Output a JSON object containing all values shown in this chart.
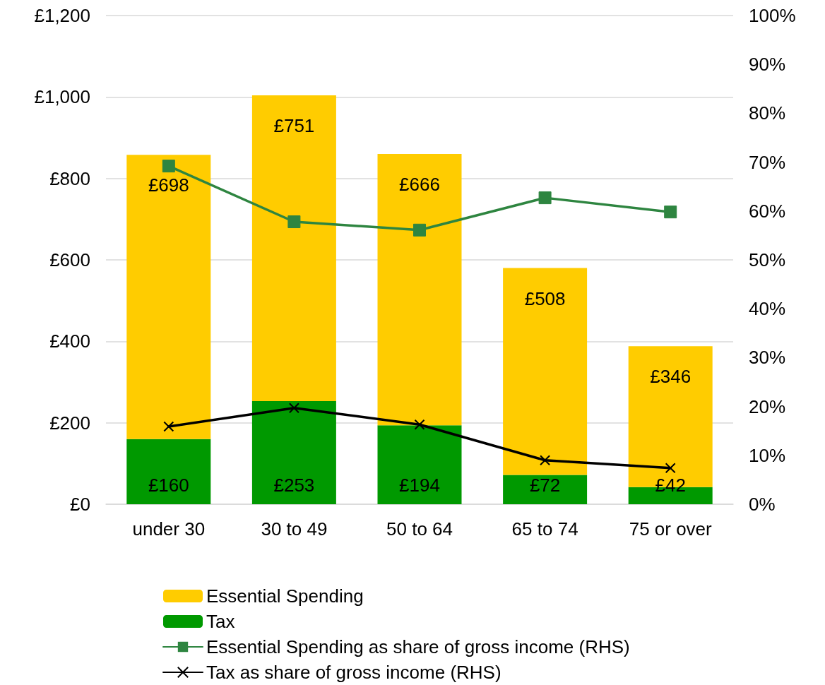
{
  "chart_data": {
    "type": "bar",
    "stacked": true,
    "categories": [
      "under 30",
      "30 to 49",
      "50 to 64",
      "65 to 74",
      "75 or over"
    ],
    "series": [
      {
        "name": "Tax",
        "color": "#009900",
        "values": [
          160,
          253,
          194,
          72,
          42
        ],
        "value_labels": [
          "£160",
          "£253",
          "£194",
          "£72",
          "£42"
        ]
      },
      {
        "name": "Essential Spending",
        "color": "#ffcc00",
        "values": [
          698,
          751,
          666,
          508,
          346
        ],
        "value_labels": [
          "£698",
          "£751",
          "£666",
          "£508",
          "£346"
        ]
      },
      {
        "name": "Essential Spending as share of gross income (RHS)",
        "type": "line",
        "axis": "y2",
        "marker": "square",
        "color": "#2e8540",
        "values": [
          69.2,
          57.8,
          56.1,
          62.7,
          59.8
        ]
      },
      {
        "name": "Tax as share of gross income (RHS)",
        "type": "line",
        "axis": "y2",
        "marker": "cross",
        "color": "#000000",
        "values": [
          15.9,
          19.7,
          16.3,
          9.0,
          7.4
        ]
      }
    ],
    "ylim": [
      0,
      1200
    ],
    "yticks": [
      {
        "value": 0,
        "label": "£0"
      },
      {
        "value": 200,
        "label": "£200"
      },
      {
        "value": 400,
        "label": "£400"
      },
      {
        "value": 600,
        "label": "£600"
      },
      {
        "value": 800,
        "label": "£800"
      },
      {
        "value": 1000,
        "label": "£1,000"
      },
      {
        "value": 1200,
        "label": "£1,200"
      }
    ],
    "y2lim": [
      0,
      100
    ],
    "y2ticks": [
      {
        "value": 0,
        "label": "0%"
      },
      {
        "value": 10,
        "label": "10%"
      },
      {
        "value": 20,
        "label": "20%"
      },
      {
        "value": 30,
        "label": "30%"
      },
      {
        "value": 40,
        "label": "40%"
      },
      {
        "value": 50,
        "label": "50%"
      },
      {
        "value": 60,
        "label": "60%"
      },
      {
        "value": 70,
        "label": "70%"
      },
      {
        "value": 80,
        "label": "80%"
      },
      {
        "value": 90,
        "label": "90%"
      },
      {
        "value": 100,
        "label": "100%"
      }
    ],
    "grid": "y",
    "legend": "bottom",
    "line_style": "solid"
  }
}
